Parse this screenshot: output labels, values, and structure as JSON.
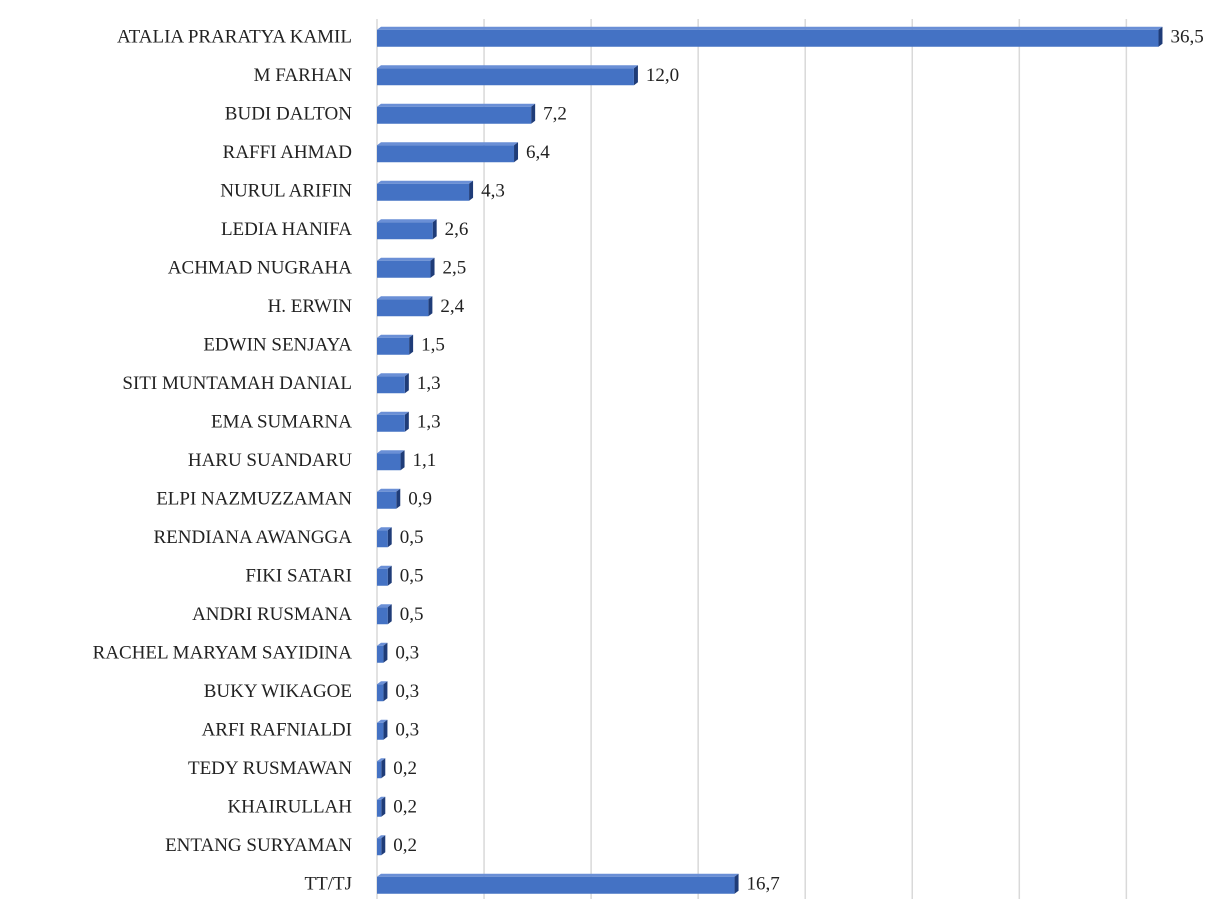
{
  "chart_data": {
    "type": "bar",
    "orientation": "horizontal",
    "categories": [
      "ATALIA PRARATYA KAMIL",
      "M FARHAN",
      "BUDI DALTON",
      "RAFFI AHMAD",
      "NURUL ARIFIN",
      "LEDIA HANIFA",
      "ACHMAD NUGRAHA",
      "H. ERWIN",
      "EDWIN SENJAYA",
      "SITI MUNTAMAH DANIAL",
      "EMA SUMARNA",
      "HARU SUANDARU",
      "ELPI NAZMUZZAMAN",
      "RENDIANA AWANGGA",
      "FIKI SATARI",
      "ANDRI RUSMANA",
      "RACHEL MARYAM SAYIDINA",
      "BUKY WIKAGOE",
      "ARFI RAFNIALDI",
      "TEDY RUSMAWAN",
      "KHAIRULLAH",
      "ENTANG SURYAMAN",
      "TT/TJ"
    ],
    "values": [
      36.5,
      12.0,
      7.2,
      6.4,
      4.3,
      2.6,
      2.5,
      2.4,
      1.5,
      1.3,
      1.3,
      1.1,
      0.9,
      0.5,
      0.5,
      0.5,
      0.3,
      0.3,
      0.3,
      0.2,
      0.2,
      0.2,
      16.7
    ],
    "value_labels": [
      "36,5",
      "12,0",
      "7,2",
      "6,4",
      "4,3",
      "2,6",
      "2,5",
      "2,4",
      "1,5",
      "1,3",
      "1,3",
      "1,1",
      "0,9",
      "0,5",
      "0,5",
      "0,5",
      "0,3",
      "0,3",
      "0,3",
      "0,2",
      "0,2",
      "0,2",
      "16,7"
    ],
    "color": "#4472c4",
    "xlim": [
      0,
      39
    ],
    "xticks": [
      0,
      5,
      10,
      15,
      20,
      25,
      30,
      35
    ],
    "grid": true
  }
}
